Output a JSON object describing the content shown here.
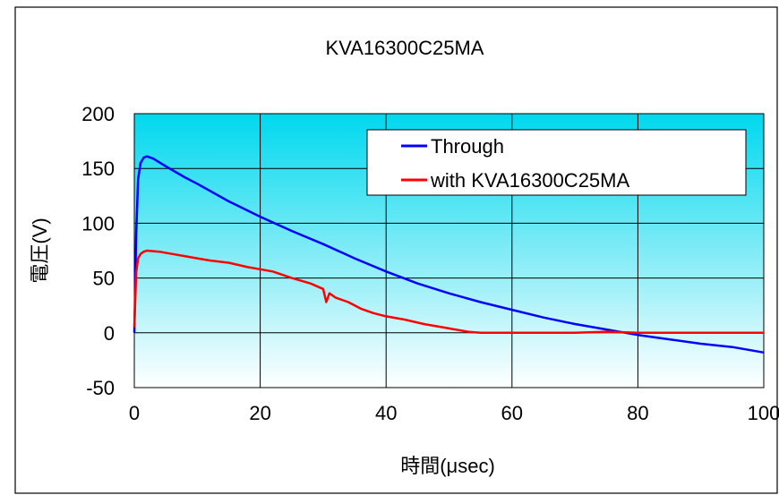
{
  "chart_data": {
    "type": "line",
    "title": "KVA16300C25MA",
    "xlabel": "時間(μsec)",
    "ylabel": "電圧(V)",
    "xlim": [
      0,
      100
    ],
    "ylim": [
      -50,
      200
    ],
    "x_ticks": [
      "0",
      "20",
      "40",
      "60",
      "80",
      "100"
    ],
    "y_ticks": [
      "200",
      "150",
      "100",
      "50",
      "0",
      "-50"
    ],
    "grid": true,
    "legend_position": "top-right",
    "background": "cyan-to-white gradient",
    "series": [
      {
        "name": "Through",
        "color": "#0000ff",
        "x": [
          0,
          0.3,
          0.6,
          1.0,
          1.5,
          2.0,
          3,
          5,
          8,
          10,
          15,
          20,
          25,
          30,
          35,
          40,
          45,
          50,
          55,
          60,
          65,
          70,
          75,
          80,
          85,
          90,
          95,
          100
        ],
        "y": [
          0,
          90,
          140,
          155,
          160,
          161,
          159,
          152,
          142,
          136,
          120,
          106,
          93,
          81,
          68,
          56,
          45,
          36,
          28,
          21,
          14,
          8,
          3,
          -2,
          -6,
          -10,
          -13,
          -18
        ]
      },
      {
        "name": "with KVA16300C25MA",
        "color": "#ff0000",
        "x": [
          0,
          0.3,
          0.6,
          1.0,
          1.5,
          2,
          4,
          6,
          8,
          10,
          12,
          15,
          18,
          20,
          22,
          25,
          28,
          30,
          30.5,
          31,
          32,
          34,
          36,
          38,
          40,
          43,
          46,
          50,
          53,
          55,
          60,
          65,
          70,
          75,
          80,
          85,
          90,
          95,
          100
        ],
        "y": [
          5,
          55,
          68,
          72,
          74,
          75,
          74,
          72,
          70,
          68,
          66,
          64,
          60,
          58,
          56,
          50,
          45,
          40,
          28,
          36,
          32,
          28,
          22,
          18,
          15,
          12,
          8,
          4,
          1,
          0,
          0,
          0,
          0,
          1,
          0,
          0,
          0,
          0,
          0
        ]
      }
    ]
  }
}
